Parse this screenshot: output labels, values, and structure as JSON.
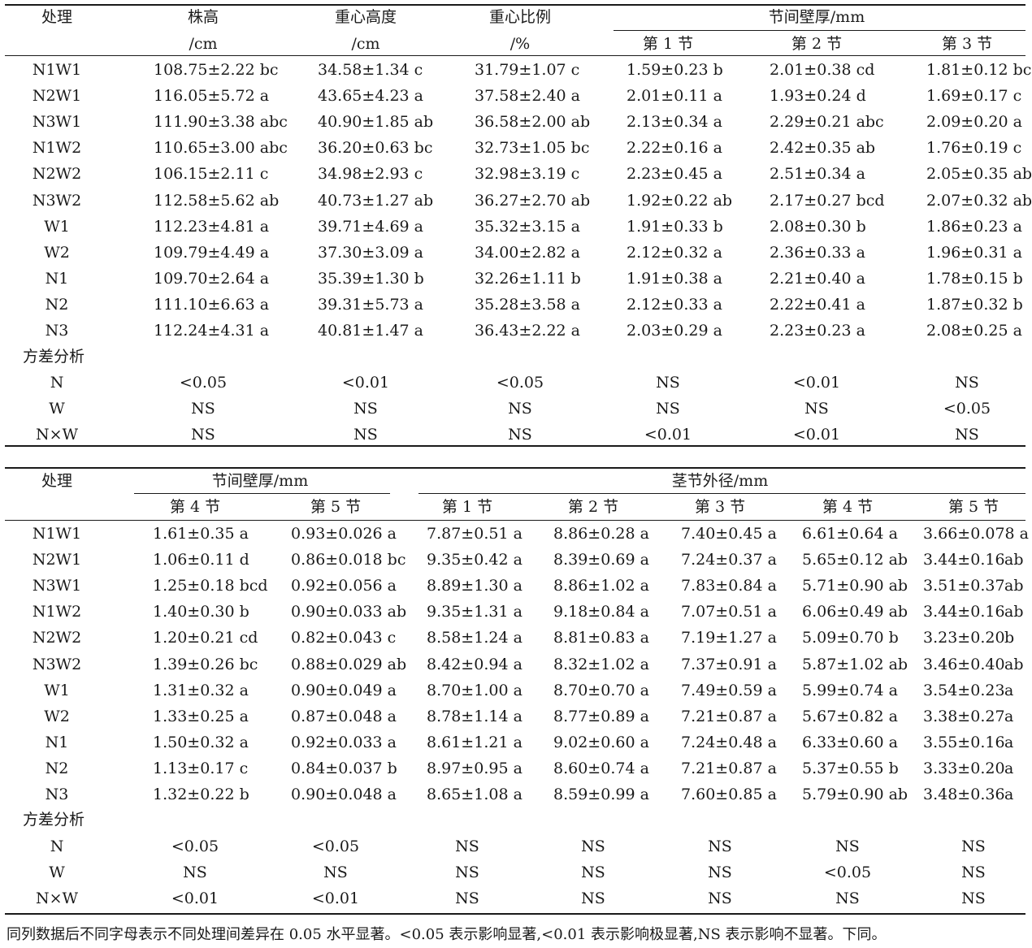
{
  "table1": {
    "headers": {
      "treatment": "处理",
      "plant_height": "株高",
      "plant_height_unit": "/cm",
      "cog_height": "重心高度",
      "cog_height_unit": "/cm",
      "cog_ratio": "重心比例",
      "cog_ratio_unit": "/%",
      "wall_thickness": "节间壁厚/mm",
      "nodes": [
        "第 1 节",
        "第 2 节",
        "第 3 节"
      ]
    },
    "rows": [
      [
        "N1W1",
        "108.75±2.22 bc",
        "34.58±1.34 c",
        "31.79±1.07 c",
        "1.59±0.23 b",
        "2.01±0.38 cd",
        "1.81±0.12 bc"
      ],
      [
        "N2W1",
        "116.05±5.72 a",
        "43.65±4.23 a",
        "37.58±2.40 a",
        "2.01±0.11 a",
        "1.93±0.24 d",
        "1.69±0.17 c"
      ],
      [
        "N3W1",
        "111.90±3.38 abc",
        "40.90±1.85 ab",
        "36.58±2.00 ab",
        "2.13±0.34 a",
        "2.29±0.21 abc",
        "2.09±0.20 a"
      ],
      [
        "N1W2",
        "110.65±3.00 abc",
        "36.20±0.63 bc",
        "32.73±1.05 bc",
        "2.22±0.16 a",
        "2.42±0.35 ab",
        "1.76±0.19 c"
      ],
      [
        "N2W2",
        "106.15±2.11 c",
        "34.98±2.93 c",
        "32.98±3.19 c",
        "2.23±0.45 a",
        "2.51±0.34 a",
        "2.05±0.35 ab"
      ],
      [
        "N3W2",
        "112.58±5.62 ab",
        "40.73±1.27 ab",
        "36.27±2.70 ab",
        "1.92±0.22 ab",
        "2.17±0.27 bcd",
        "2.07±0.32 ab"
      ],
      [
        "W1",
        "112.23±4.81 a",
        "39.71±4.69 a",
        "35.32±3.15 a",
        "1.91±0.33 b",
        "2.08±0.30 b",
        "1.86±0.23 a"
      ],
      [
        "W2",
        "109.79±4.49 a",
        "37.30±3.09 a",
        "34.00±2.82 a",
        "2.12±0.32 a",
        "2.36±0.33 a",
        "1.96±0.31 a"
      ],
      [
        "N1",
        "109.70±2.64 a",
        "35.39±1.30 b",
        "32.26±1.11 b",
        "1.91±0.38 a",
        "2.21±0.40 a",
        "1.78±0.15 b"
      ],
      [
        "N2",
        "111.10±6.63 a",
        "39.31±5.73 a",
        "35.28±3.58 a",
        "2.12±0.33 a",
        "2.22±0.41 a",
        "1.87±0.32 b"
      ],
      [
        "N3",
        "112.24±4.31 a",
        "40.81±1.47 a",
        "36.43±2.22 a",
        "2.03±0.29 a",
        "2.23±0.23 a",
        "2.08±0.25 a"
      ]
    ],
    "anova_label": "方差分析",
    "anova_rows": [
      [
        "N",
        "<0.05",
        "<0.01",
        "<0.05",
        "NS",
        "<0.01",
        "NS"
      ],
      [
        "W",
        "NS",
        "NS",
        "NS",
        "NS",
        "NS",
        "<0.05"
      ],
      [
        "N×W",
        "NS",
        "NS",
        "NS",
        "<0.01",
        "<0.01",
        "NS"
      ]
    ]
  },
  "table2": {
    "headers": {
      "treatment": "处理",
      "wall_thickness": "节间壁厚/mm",
      "stem_diameter": "茎节外径/mm",
      "wall_nodes": [
        "第 4 节",
        "第 5 节"
      ],
      "diameter_nodes": [
        "第 1 节",
        "第 2 节",
        "第 3 节",
        "第 4 节",
        "第 5 节"
      ]
    },
    "rows": [
      [
        "N1W1",
        "1.61±0.35 a",
        "0.93±0.026 a",
        "7.87±0.51 a",
        "8.86±0.28 a",
        "7.40±0.45 a",
        "6.61±0.64 a",
        "3.66±0.078 a"
      ],
      [
        "N2W1",
        "1.06±0.11 d",
        "0.86±0.018 bc",
        "9.35±0.42 a",
        "8.39±0.69 a",
        "7.24±0.37 a",
        "5.65±0.12 ab",
        "3.44±0.16",
        "ab"
      ],
      [
        "N3W1",
        "1.25±0.18 bcd",
        "0.92±0.056 a",
        "8.89±1.30 a",
        "8.86±1.02 a",
        "7.83±0.84 a",
        "5.71±0.90 ab",
        "3.51±0.37",
        "ab"
      ],
      [
        "N1W2",
        "1.40±0.30 b",
        "0.90±0.033 ab",
        "9.35±1.31 a",
        "9.18±0.84 a",
        "7.07±0.51 a",
        "6.06±0.49 ab",
        "3.44±0.16",
        "ab"
      ],
      [
        "N2W2",
        "1.20±0.21 cd",
        "0.82±0.043 c",
        "8.58±1.24 a",
        "8.81±0.83 a",
        "7.19±1.27 a",
        "5.09±0.70 b",
        "3.23±0.20",
        "b"
      ],
      [
        "N3W2",
        "1.39±0.26 bc",
        "0.88±0.029 ab",
        "8.42±0.94 a",
        "8.32±1.02 a",
        "7.37±0.91 a",
        "5.87±1.02 ab",
        "3.46±0.40",
        "ab"
      ],
      [
        "W1",
        "1.31±0.32 a",
        "0.90±0.049 a",
        "8.70±1.00 a",
        "8.70±0.70 a",
        "7.49±0.59 a",
        "5.99±0.74 a",
        "3.54±0.23",
        "a"
      ],
      [
        "W2",
        "1.33±0.25 a",
        "0.87±0.048 a",
        "8.78±1.14 a",
        "8.77±0.89 a",
        "7.21±0.87 a",
        "5.67±0.82 a",
        "3.38±0.27",
        "a"
      ],
      [
        "N1",
        "1.50±0.32 a",
        "0.92±0.033 a",
        "8.61±1.21 a",
        "9.02±0.60 a",
        "7.24±0.48 a",
        "6.33±0.60 a",
        "3.55±0.16",
        "a"
      ],
      [
        "N2",
        "1.13±0.17 c",
        "0.84±0.037 b",
        "8.97±0.95 a",
        "8.60±0.74 a",
        "7.21±0.87 a",
        "5.37±0.55 b",
        "3.33±0.20",
        "a"
      ],
      [
        "N3",
        "1.32±0.22 b",
        "0.90±0.048 a",
        "8.65±1.08 a",
        "8.59±0.99 a",
        "7.60±0.85 a",
        "5.79±0.90 ab",
        "3.48±0.36",
        "a"
      ]
    ],
    "anova_label": "方差分析",
    "anova_rows": [
      [
        "N",
        "<0.05",
        "<0.05",
        "NS",
        "NS",
        "NS",
        "NS",
        "NS"
      ],
      [
        "W",
        "NS",
        "NS",
        "NS",
        "NS",
        "NS",
        "<0.05",
        "NS"
      ],
      [
        "N×W",
        "<0.01",
        "<0.01",
        "NS",
        "NS",
        "NS",
        "NS",
        "NS"
      ]
    ]
  },
  "footnote": "同列数据后不同字母表示不同处理间差异在 0.05 水平显著。<0.05 表示影响显著,<0.01 表示影响极显著,NS 表示影响不显著。下同。"
}
